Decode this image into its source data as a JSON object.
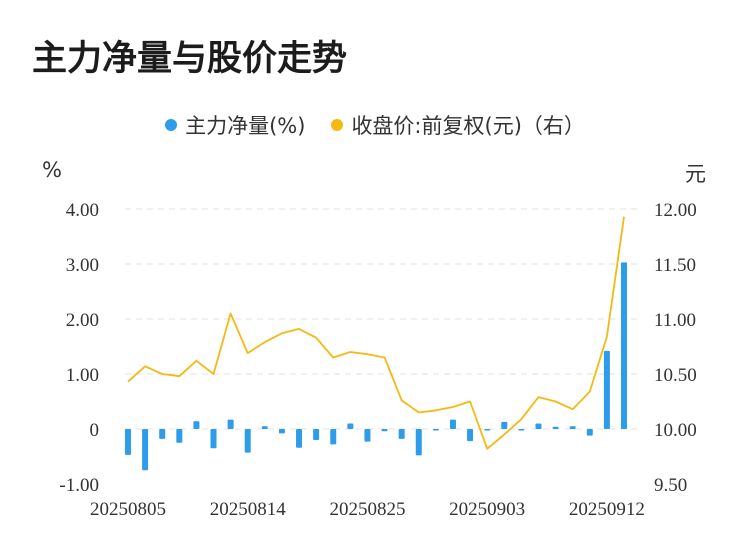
{
  "title": "主力净量与股价走势",
  "legend": {
    "net": "主力净量(%)",
    "price": "收盘价:前复权(元)（右）"
  },
  "units": {
    "left": "%",
    "right": "元"
  },
  "colors": {
    "bar": "#2d9cea",
    "line": "#f5b914",
    "grid": "#e0e0e0"
  },
  "chart_data": {
    "type": "bar+line",
    "x_tick_labels": [
      "20250805",
      "20250814",
      "20250825",
      "20250903",
      "20250912"
    ],
    "left_axis": {
      "ticks": [
        "4.00",
        "3.00",
        "2.00",
        "1.00",
        "0",
        "-1.00"
      ],
      "range": [
        -1,
        4
      ]
    },
    "right_axis": {
      "ticks": [
        "12.00",
        "11.50",
        "11.00",
        "10.50",
        "10.00",
        "9.50"
      ],
      "range": [
        9.5,
        12
      ]
    },
    "series": [
      {
        "name": "主力净量(%)",
        "type": "bar",
        "axis": "left",
        "values": [
          -0.47,
          -0.75,
          -0.18,
          -0.25,
          0.14,
          -0.35,
          0.17,
          -0.43,
          0.05,
          -0.08,
          -0.34,
          -0.2,
          -0.28,
          0.1,
          -0.23,
          -0.04,
          -0.18,
          -0.48,
          -0.01,
          0.17,
          -0.22,
          -0.01,
          0.13,
          -0.02,
          0.1,
          0.04,
          0.05,
          -0.12,
          1.42,
          3.03
        ]
      },
      {
        "name": "收盘价:前复权(元)（右）",
        "type": "line",
        "axis": "right",
        "values": [
          10.43,
          10.57,
          10.5,
          10.48,
          10.62,
          10.5,
          11.05,
          10.69,
          10.79,
          10.87,
          10.91,
          10.83,
          10.65,
          10.7,
          10.68,
          10.65,
          10.26,
          10.15,
          10.17,
          10.2,
          10.25,
          9.82,
          9.95,
          10.09,
          10.29,
          10.25,
          10.18,
          10.34,
          10.84,
          11.93
        ]
      }
    ]
  }
}
